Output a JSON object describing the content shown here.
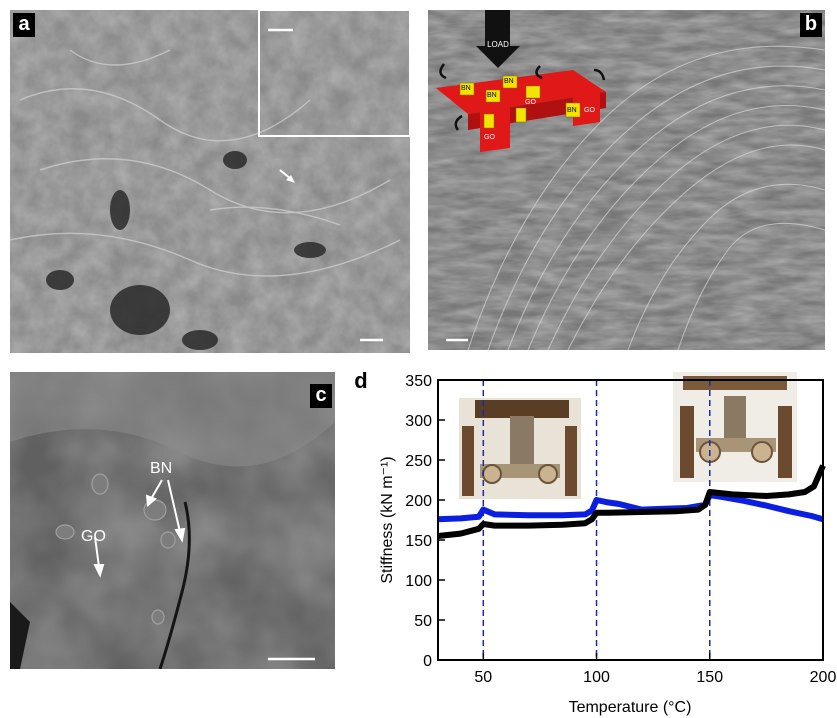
{
  "panels": {
    "a": {
      "tag": "a"
    },
    "b": {
      "tag": "b",
      "load_label": "LOAD",
      "bn": "BN",
      "go": "GO"
    },
    "c": {
      "tag": "c",
      "bn_label": "BN",
      "go_label": "GO"
    },
    "d": {
      "tag": "d"
    }
  },
  "chart_data": {
    "type": "line",
    "xlabel": "Temperature (°C)",
    "ylabel": "Stiffness (kN m⁻¹)",
    "xlim": [
      30,
      200
    ],
    "ylim": [
      0,
      350
    ],
    "xticks": [
      50,
      100,
      150,
      200
    ],
    "yticks": [
      0,
      50,
      100,
      150,
      200,
      250,
      300,
      350
    ],
    "vlines": [
      50,
      100,
      150
    ],
    "series": [
      {
        "color": "#0b1fe0",
        "x": [
          30,
          40,
          48,
          50,
          55,
          70,
          85,
          95,
          98,
          100,
          105,
          110,
          120,
          130,
          140,
          148,
          150,
          155,
          165,
          175,
          185,
          195,
          200
        ],
        "y": [
          176,
          177,
          179,
          188,
          182,
          181,
          181,
          182,
          187,
          200,
          197,
          195,
          188,
          189,
          190,
          194,
          206,
          204,
          199,
          193,
          186,
          180,
          176
        ]
      },
      {
        "color": "#000000",
        "x": [
          30,
          40,
          48,
          50,
          55,
          70,
          85,
          95,
          98,
          100,
          105,
          120,
          135,
          145,
          148,
          150,
          160,
          175,
          185,
          192,
          196,
          200
        ],
        "y": [
          155,
          158,
          164,
          170,
          168,
          168,
          169,
          171,
          176,
          184,
          184,
          185,
          186,
          188,
          194,
          210,
          207,
          205,
          207,
          210,
          217,
          243
        ]
      }
    ]
  }
}
